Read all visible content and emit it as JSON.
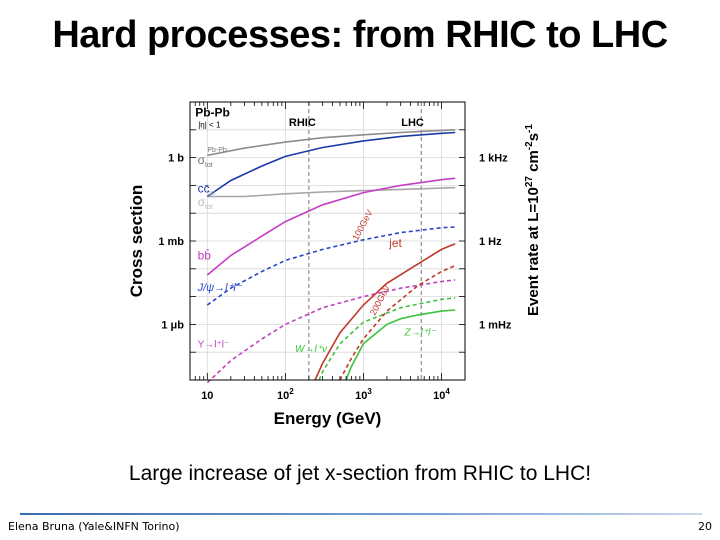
{
  "slide": {
    "title": "Hard processes: from RHIC to LHC",
    "caption": "Large increase of jet x-section from RHIC to LHC!",
    "footer_left": "Elena Bruna (Yale&INFN Torino)",
    "page_number": "20"
  },
  "chart_data": {
    "type": "line",
    "xlabel": "Energy (GeV)",
    "ylabel": "Cross section",
    "ylabel_right": "Event rate at L=10",
    "ylabel_right_sup1": "27",
    "ylabel_right_mid": " cm",
    "ylabel_right_sup2": "-2",
    "ylabel_right_mid2": "s",
    "ylabel_right_sup3": "-1",
    "x_scale": "log",
    "y_scale": "log",
    "xlim": [
      6,
      20000
    ],
    "ylim_barn": [
      1e-08,
      100
    ],
    "x_ticks": [
      {
        "value": 10,
        "label": "10"
      },
      {
        "value": 100,
        "label": "10",
        "sup": "2"
      },
      {
        "value": 1000,
        "label": "10",
        "sup": "3"
      },
      {
        "value": 10000,
        "label": "10",
        "sup": "4"
      }
    ],
    "y_ticks_left": [
      {
        "value": 1,
        "label": "1 b"
      },
      {
        "value": 0.001,
        "label": "1 mb"
      },
      {
        "value": 1e-06,
        "label": "1 μb"
      }
    ],
    "y_ticks_right": [
      {
        "value": 1,
        "label": "1 kHz"
      },
      {
        "value": 0.001,
        "label": "1 Hz"
      },
      {
        "value": 1e-06,
        "label": "1 mHz"
      }
    ],
    "legend_box": {
      "line1": "Pb-Pb",
      "line2": "|η| < 1"
    },
    "markers": [
      {
        "label": "RHIC",
        "x": 200
      },
      {
        "label": "LHC",
        "x": 5500
      }
    ],
    "series": [
      {
        "name": "σ",
        "sub": "tot",
        "sup": "Pb-Pb",
        "color": "#8c8c8c",
        "style": "solid",
        "points": [
          [
            10,
            1.2
          ],
          [
            30,
            2.2
          ],
          [
            100,
            3.6
          ],
          [
            300,
            5.2
          ],
          [
            1000,
            6.6
          ],
          [
            3000,
            8
          ],
          [
            10000,
            9.5
          ],
          [
            15000,
            10
          ]
        ]
      },
      {
        "name": "σ",
        "sub": "tot",
        "sup": "pp",
        "color": "#a6a6a6",
        "style": "solid",
        "points": [
          [
            10,
            0.04
          ],
          [
            30,
            0.04
          ],
          [
            100,
            0.05
          ],
          [
            300,
            0.058
          ],
          [
            1000,
            0.065
          ],
          [
            3000,
            0.072
          ],
          [
            10000,
            0.08
          ],
          [
            15000,
            0.083
          ]
        ]
      },
      {
        "name": "cc̄",
        "color": "#1a3aa8",
        "style": "solid",
        "points": [
          [
            10,
            0.04
          ],
          [
            20,
            0.15
          ],
          [
            50,
            0.5
          ],
          [
            100,
            1.1
          ],
          [
            300,
            2.3
          ],
          [
            1000,
            4
          ],
          [
            3000,
            5.8
          ],
          [
            10000,
            7.5
          ],
          [
            15000,
            8
          ]
        ]
      },
      {
        "name": "bb̄",
        "color": "#c23fc2",
        "style": "solid",
        "points": [
          [
            10,
            6e-05
          ],
          [
            20,
            0.0003
          ],
          [
            50,
            0.0015
          ],
          [
            100,
            0.005
          ],
          [
            300,
            0.02
          ],
          [
            1000,
            0.055
          ],
          [
            3000,
            0.1
          ],
          [
            10000,
            0.16
          ],
          [
            15000,
            0.18
          ]
        ]
      },
      {
        "name": "J/ψ→l⁺l⁻",
        "color": "#2a45c6",
        "style": "dashed",
        "points": [
          [
            10,
            5e-06
          ],
          [
            20,
            2e-05
          ],
          [
            50,
            8e-05
          ],
          [
            100,
            0.0002
          ],
          [
            300,
            0.0005
          ],
          [
            1000,
            0.0011
          ],
          [
            3000,
            0.002
          ],
          [
            10000,
            0.003
          ],
          [
            15000,
            0.0032
          ]
        ]
      },
      {
        "name": "Υ→l⁺l⁻",
        "color": "#c23fc2",
        "style": "dashed",
        "points": [
          [
            10,
            8e-09
          ],
          [
            20,
            5e-08
          ],
          [
            50,
            3e-07
          ],
          [
            100,
            1e-06
          ],
          [
            300,
            4e-06
          ],
          [
            1000,
            1e-05
          ],
          [
            3000,
            2e-05
          ],
          [
            10000,
            3.5e-05
          ],
          [
            15000,
            4e-05
          ]
        ]
      },
      {
        "name": "W→l⁺ν",
        "color": "#3cc43c",
        "style": "dashed",
        "points": [
          [
            270,
            1e-08
          ],
          [
            300,
            2e-08
          ],
          [
            500,
            2e-07
          ],
          [
            1000,
            1.2e-06
          ],
          [
            3000,
            4e-06
          ],
          [
            10000,
            8e-06
          ],
          [
            15000,
            9e-06
          ]
        ]
      },
      {
        "name": "Z→l⁺l⁻",
        "color": "#3cc43c",
        "style": "solid",
        "points": [
          [
            600,
            1e-08
          ],
          [
            700,
            3e-08
          ],
          [
            1000,
            2e-07
          ],
          [
            2000,
            1e-06
          ],
          [
            3000,
            1.6e-06
          ],
          [
            5000,
            2.2e-06
          ],
          [
            10000,
            3e-06
          ],
          [
            15000,
            3.3e-06
          ]
        ]
      },
      {
        "name": "jet",
        "sub": "100GeV",
        "color": "#c0392b",
        "style": "solid",
        "points": [
          [
            240,
            1e-08
          ],
          [
            300,
            4e-08
          ],
          [
            500,
            5e-07
          ],
          [
            1000,
            5e-06
          ],
          [
            2000,
            3e-05
          ],
          [
            5000,
            0.00015
          ],
          [
            10000,
            0.0005
          ],
          [
            15000,
            0.0008
          ]
        ]
      },
      {
        "name": "jet",
        "sub": "200GeV",
        "color": "#c0392b",
        "style": "dashed",
        "points": [
          [
            500,
            1e-08
          ],
          [
            700,
            6e-08
          ],
          [
            1000,
            3e-07
          ],
          [
            2000,
            3e-06
          ],
          [
            5000,
            2.5e-05
          ],
          [
            10000,
            8e-05
          ],
          [
            15000,
            0.00013
          ]
        ]
      }
    ],
    "annotations": {
      "jet_label": "jet",
      "jet100_label": "100GeV",
      "jet200_label": "200GeV"
    }
  }
}
